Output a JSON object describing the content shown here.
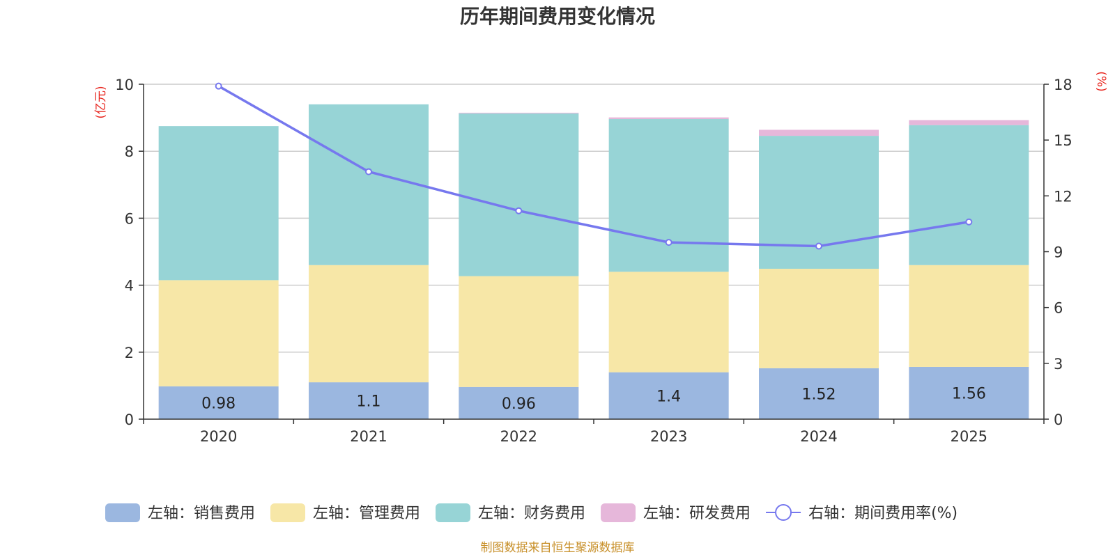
{
  "chart_data": {
    "type": "bar",
    "stacked": true,
    "title": "历年期间费用变化情况",
    "categories": [
      "2020",
      "2021",
      "2022",
      "2023",
      "2024",
      "2025"
    ],
    "y_left": {
      "unit": "(亿元)",
      "range": [
        0,
        10
      ],
      "ticks": [
        "0",
        "2",
        "4",
        "6",
        "8",
        "10"
      ],
      "tick_values": [
        0,
        2,
        4,
        6,
        8,
        10
      ]
    },
    "y_right": {
      "unit": "(%)",
      "range": [
        0,
        18
      ],
      "ticks": [
        "0",
        "3",
        "6",
        "9",
        "12",
        "15",
        "18"
      ],
      "tick_values": [
        0,
        3,
        6,
        9,
        12,
        15,
        18
      ]
    },
    "series": [
      {
        "name": "左轴：销售费用",
        "axis": "left",
        "kind": "bar",
        "color": "#9bb7e0",
        "values": [
          0.98,
          1.1,
          0.96,
          1.4,
          1.52,
          1.56
        ],
        "labels": [
          "0.98",
          "1.1",
          "0.96",
          "1.4",
          "1.52",
          "1.56"
        ]
      },
      {
        "name": "左轴：管理费用",
        "axis": "left",
        "kind": "bar",
        "color": "#f7e7a7",
        "values": [
          3.17,
          3.5,
          3.31,
          3.0,
          2.97,
          3.04
        ]
      },
      {
        "name": "左轴：财务费用",
        "axis": "left",
        "kind": "bar",
        "color": "#97d4d6",
        "values": [
          4.6,
          4.8,
          4.86,
          4.56,
          3.97,
          4.18
        ]
      },
      {
        "name": "左轴：研发费用",
        "axis": "left",
        "kind": "bar",
        "color": "#e6b7da",
        "values": [
          0.0,
          0.0,
          0.02,
          0.05,
          0.18,
          0.15
        ]
      },
      {
        "name": "右轴：期间费用率(%)",
        "axis": "right",
        "kind": "line",
        "color": "#7678ee",
        "values": [
          17.9,
          13.3,
          11.2,
          9.5,
          9.3,
          10.6
        ]
      }
    ],
    "legend_position": "bottom",
    "grid": true
  },
  "source_note": "制图数据来自恒生聚源数据库"
}
